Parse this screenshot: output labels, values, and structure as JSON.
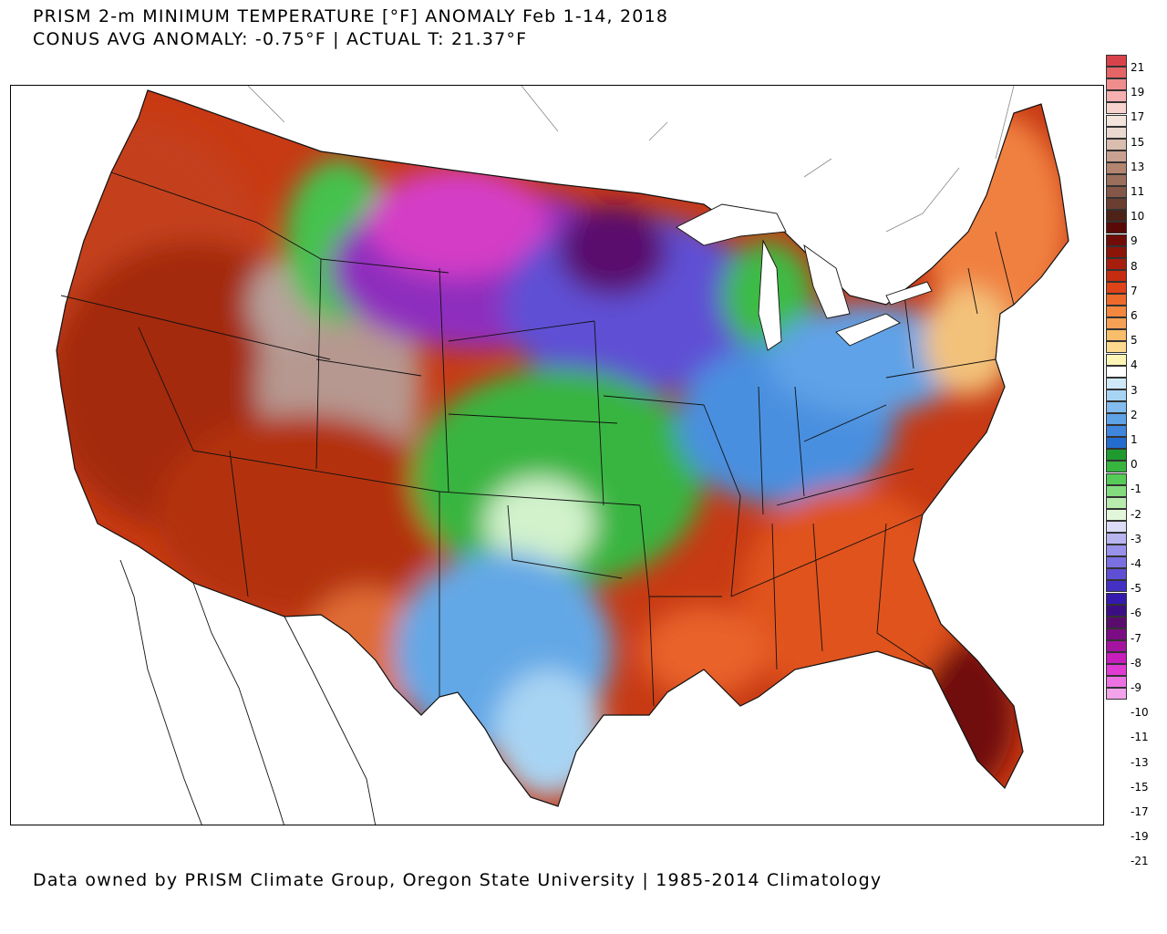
{
  "header": {
    "title_line1": "PRISM 2-m MINIMUM TEMPERATURE [°F] ANOMALY Feb 1-14, 2018",
    "title_line2": "CONUS AVG ANOMALY: -0.75°F | ACTUAL T: 21.37°F"
  },
  "footer": {
    "credit": "Data owned by PRISM Climate Group, Oregon State University | 1985-2014 Climatology"
  },
  "colorbar": {
    "labels": [
      "21",
      "19",
      "17",
      "15",
      "13",
      "11",
      "10",
      "9",
      "8",
      "7",
      "6",
      "5",
      "4",
      "3",
      "2",
      "1",
      "0",
      "-1",
      "-2",
      "-3",
      "-4",
      "-5",
      "-6",
      "-7",
      "-8",
      "-9",
      "-10",
      "-11",
      "-13",
      "-15",
      "-17",
      "-19",
      "-21"
    ],
    "colors": [
      "#d8424a",
      "#e56567",
      "#ef8c8c",
      "#f5b1b0",
      "#f7d3cd",
      "#f3e4dc",
      "#ead9cf",
      "#d9bdaf",
      "#c9a190",
      "#b38570",
      "#9c6f5d",
      "#835848",
      "#6a3f32",
      "#4d2217",
      "#5a0a06",
      "#700d08",
      "#8c1509",
      "#a81e0c",
      "#c52c10",
      "#df4318",
      "#ee6a2a",
      "#f3873e",
      "#f5a054",
      "#f8be6c",
      "#fbd98e",
      "#fcf5b6",
      "#ffffff",
      "#cfe9f8",
      "#a8d4f3",
      "#83bcee",
      "#5ea2e7",
      "#3f86dc",
      "#246ccf",
      "#1f9a2e",
      "#37b53f",
      "#56cb58",
      "#84dc7f",
      "#b8ecae",
      "#e2f7da",
      "#dcdcf7",
      "#b8b4f0",
      "#9992ea",
      "#7b70e0",
      "#5e4fd4",
      "#4530c4",
      "#3518ad",
      "#3c0e84",
      "#5a0c6d",
      "#7c0c84",
      "#a3159f",
      "#c71ebc",
      "#e03bd3",
      "#ec72e2",
      "#f2a3ea"
    ]
  },
  "map": {
    "regions": [
      {
        "name": "pacific-northwest-warm",
        "color": "#b93010"
      },
      {
        "name": "great-basin-warm",
        "color": "#a82a0c"
      },
      {
        "name": "rockies-strong-warm",
        "color": "#b69890"
      },
      {
        "name": "southwest-warm",
        "color": "#b83312"
      },
      {
        "name": "northern-plains-cold",
        "color": "#8a2bb0"
      },
      {
        "name": "great-lakes-cold",
        "color": "#5e4fd4"
      },
      {
        "name": "central-plains-cool",
        "color": "#38b540"
      },
      {
        "name": "southern-plains-cool",
        "color": "#63a8e6"
      },
      {
        "name": "ohio-valley-cool",
        "color": "#4a8fdf"
      },
      {
        "name": "southeast-warm",
        "color": "#e0531f"
      },
      {
        "name": "florida-strong-warm",
        "color": "#701108"
      },
      {
        "name": "northeast-warm",
        "color": "#f08040"
      }
    ]
  }
}
